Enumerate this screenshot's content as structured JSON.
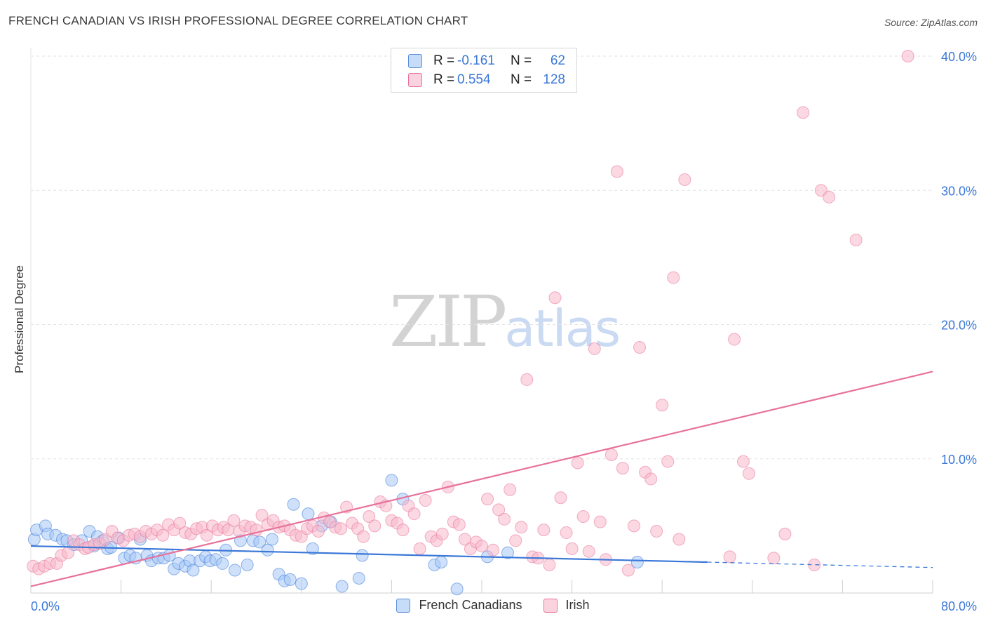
{
  "title": "FRENCH CANADIAN VS IRISH PROFESSIONAL DEGREE CORRELATION CHART",
  "source": "Source: ZipAtlas.com",
  "watermark": {
    "zip": "ZIP",
    "atlas": "atlas"
  },
  "legend_top": {
    "rows": [
      {
        "r_label": "R =",
        "r_value": "-0.161",
        "n_label": "N =",
        "n_value": "62",
        "color": "#a8c8f5"
      },
      {
        "r_label": "R =",
        "r_value": "0.554",
        "n_label": "N =",
        "n_value": "128",
        "color": "#f7b8cb"
      }
    ]
  },
  "legend_bottom": [
    {
      "label": "French Canadians",
      "color": "#a8c8f5"
    },
    {
      "label": "Irish",
      "color": "#f7b8cb"
    }
  ],
  "chart_data": {
    "type": "scatter",
    "title": "FRENCH CANADIAN VS IRISH PROFESSIONAL DEGREE CORRELATION CHART",
    "xlabel": "",
    "ylabel": "Professional Degree",
    "xlim": [
      0,
      80
    ],
    "ylim": [
      0,
      40
    ],
    "x_tick_labels": [
      {
        "value": 0,
        "label": "0.0%"
      },
      {
        "value": 80,
        "label": "80.0%"
      }
    ],
    "y_tick_labels": [
      {
        "value": 10,
        "label": "10.0%"
      },
      {
        "value": 20,
        "label": "20.0%"
      },
      {
        "value": 30,
        "label": "30.0%"
      },
      {
        "value": 40,
        "label": "40.0%"
      }
    ],
    "grid": true,
    "series": [
      {
        "name": "French Canadians",
        "color": "#3b78d8",
        "fill": "#a8c8f5",
        "r": -0.161,
        "n": 62,
        "trend": {
          "x0": 0,
          "y0": 3.5,
          "x1": 60,
          "y1": 2.3,
          "dash_to": 80,
          "dash_y": 1.9
        },
        "points": [
          [
            0.3,
            4.0
          ],
          [
            0.5,
            4.7
          ],
          [
            1.3,
            5.0
          ],
          [
            1.5,
            4.4
          ],
          [
            2.2,
            4.3
          ],
          [
            2.8,
            4.0
          ],
          [
            3.2,
            3.9
          ],
          [
            3.8,
            3.6
          ],
          [
            4.5,
            3.9
          ],
          [
            5.2,
            4.6
          ],
          [
            5.6,
            3.5
          ],
          [
            5.9,
            4.2
          ],
          [
            6.4,
            3.9
          ],
          [
            6.8,
            3.3
          ],
          [
            7.1,
            3.4
          ],
          [
            7.8,
            4.1
          ],
          [
            8.3,
            2.6
          ],
          [
            8.8,
            2.8
          ],
          [
            9.3,
            2.6
          ],
          [
            9.7,
            4.0
          ],
          [
            10.3,
            2.8
          ],
          [
            10.7,
            2.4
          ],
          [
            11.3,
            2.6
          ],
          [
            11.8,
            2.6
          ],
          [
            12.3,
            2.8
          ],
          [
            12.7,
            1.8
          ],
          [
            13.1,
            2.2
          ],
          [
            13.7,
            2.0
          ],
          [
            14.1,
            2.4
          ],
          [
            14.4,
            1.7
          ],
          [
            15.0,
            2.4
          ],
          [
            15.5,
            2.7
          ],
          [
            15.9,
            2.4
          ],
          [
            16.4,
            2.5
          ],
          [
            17.0,
            2.2
          ],
          [
            17.3,
            3.2
          ],
          [
            18.1,
            1.7
          ],
          [
            18.6,
            3.9
          ],
          [
            19.2,
            2.1
          ],
          [
            19.7,
            3.9
          ],
          [
            20.3,
            3.8
          ],
          [
            21.0,
            3.2
          ],
          [
            21.4,
            4.0
          ],
          [
            22.0,
            1.4
          ],
          [
            22.5,
            0.9
          ],
          [
            23.0,
            1.0
          ],
          [
            23.3,
            6.6
          ],
          [
            24.0,
            0.7
          ],
          [
            24.6,
            5.9
          ],
          [
            25.0,
            3.3
          ],
          [
            25.8,
            5.0
          ],
          [
            26.6,
            5.3
          ],
          [
            27.6,
            0.5
          ],
          [
            29.1,
            1.1
          ],
          [
            29.4,
            2.8
          ],
          [
            32.0,
            8.4
          ],
          [
            33.0,
            7.0
          ],
          [
            35.8,
            2.1
          ],
          [
            36.4,
            2.3
          ],
          [
            37.8,
            0.3
          ],
          [
            40.5,
            2.7
          ],
          [
            42.3,
            3.0
          ],
          [
            53.8,
            2.3
          ]
        ]
      },
      {
        "name": "Irish",
        "color": "#e8729a",
        "fill": "#f7b8cb",
        "r": 0.554,
        "n": 128,
        "trend": {
          "x0": 0,
          "y0": 0.5,
          "x1": 80,
          "y1": 16.5
        },
        "points": [
          [
            0.2,
            2.0
          ],
          [
            0.7,
            1.8
          ],
          [
            1.2,
            2.0
          ],
          [
            1.7,
            2.2
          ],
          [
            2.3,
            2.2
          ],
          [
            2.7,
            2.8
          ],
          [
            3.3,
            3.0
          ],
          [
            3.8,
            3.9
          ],
          [
            4.3,
            3.6
          ],
          [
            4.8,
            3.3
          ],
          [
            5.1,
            3.4
          ],
          [
            5.6,
            3.6
          ],
          [
            6.1,
            3.7
          ],
          [
            6.6,
            4.0
          ],
          [
            7.2,
            4.6
          ],
          [
            7.7,
            4.1
          ],
          [
            8.2,
            3.9
          ],
          [
            8.7,
            4.3
          ],
          [
            9.2,
            4.4
          ],
          [
            9.7,
            4.2
          ],
          [
            10.2,
            4.6
          ],
          [
            10.7,
            4.4
          ],
          [
            11.2,
            4.7
          ],
          [
            11.7,
            4.3
          ],
          [
            12.2,
            5.1
          ],
          [
            12.7,
            4.7
          ],
          [
            13.2,
            5.2
          ],
          [
            13.7,
            4.5
          ],
          [
            14.2,
            4.4
          ],
          [
            14.7,
            4.8
          ],
          [
            15.2,
            4.9
          ],
          [
            15.6,
            4.3
          ],
          [
            16.1,
            5.0
          ],
          [
            16.6,
            4.7
          ],
          [
            17.1,
            4.9
          ],
          [
            17.5,
            4.7
          ],
          [
            18.0,
            5.4
          ],
          [
            18.5,
            4.6
          ],
          [
            19.0,
            5.0
          ],
          [
            19.5,
            4.9
          ],
          [
            20.0,
            4.7
          ],
          [
            20.5,
            5.8
          ],
          [
            21.0,
            5.1
          ],
          [
            21.5,
            5.4
          ],
          [
            22.0,
            4.9
          ],
          [
            22.5,
            5.0
          ],
          [
            23.0,
            4.7
          ],
          [
            23.5,
            4.3
          ],
          [
            24.0,
            4.2
          ],
          [
            24.5,
            4.8
          ],
          [
            25.0,
            5.0
          ],
          [
            25.5,
            4.6
          ],
          [
            26.0,
            5.6
          ],
          [
            26.5,
            5.3
          ],
          [
            27.0,
            4.9
          ],
          [
            27.5,
            4.8
          ],
          [
            28.0,
            6.4
          ],
          [
            28.5,
            5.2
          ],
          [
            29.0,
            4.8
          ],
          [
            29.5,
            4.2
          ],
          [
            30.0,
            5.7
          ],
          [
            30.5,
            5.0
          ],
          [
            31.0,
            6.8
          ],
          [
            31.5,
            6.5
          ],
          [
            32.0,
            5.4
          ],
          [
            32.5,
            5.2
          ],
          [
            33.0,
            4.7
          ],
          [
            33.5,
            6.5
          ],
          [
            34.0,
            5.9
          ],
          [
            34.5,
            3.3
          ],
          [
            35.0,
            6.9
          ],
          [
            35.5,
            4.2
          ],
          [
            36.0,
            3.9
          ],
          [
            36.5,
            4.4
          ],
          [
            37.0,
            7.9
          ],
          [
            37.5,
            5.3
          ],
          [
            38.0,
            5.1
          ],
          [
            38.5,
            4.0
          ],
          [
            39.0,
            3.3
          ],
          [
            39.5,
            3.8
          ],
          [
            40.0,
            3.5
          ],
          [
            40.5,
            7.0
          ],
          [
            41.0,
            3.2
          ],
          [
            41.5,
            6.2
          ],
          [
            42.0,
            5.5
          ],
          [
            42.5,
            7.7
          ],
          [
            43.0,
            3.9
          ],
          [
            43.5,
            4.9
          ],
          [
            44.0,
            15.9
          ],
          [
            44.5,
            2.7
          ],
          [
            45.0,
            2.6
          ],
          [
            45.5,
            4.7
          ],
          [
            46.0,
            2.1
          ],
          [
            46.5,
            22.0
          ],
          [
            47.0,
            7.1
          ],
          [
            47.5,
            4.5
          ],
          [
            48.0,
            3.3
          ],
          [
            48.5,
            9.7
          ],
          [
            49.0,
            5.7
          ],
          [
            49.5,
            3.1
          ],
          [
            50.0,
            18.2
          ],
          [
            50.5,
            5.3
          ],
          [
            51.0,
            2.5
          ],
          [
            51.5,
            10.3
          ],
          [
            52.0,
            31.4
          ],
          [
            52.5,
            9.3
          ],
          [
            53.0,
            1.7
          ],
          [
            53.5,
            5.0
          ],
          [
            54.0,
            18.3
          ],
          [
            54.5,
            9.0
          ],
          [
            55.0,
            8.5
          ],
          [
            55.5,
            4.6
          ],
          [
            56.0,
            14.0
          ],
          [
            56.5,
            9.8
          ],
          [
            57.0,
            23.5
          ],
          [
            57.5,
            4.0
          ],
          [
            58.0,
            30.8
          ],
          [
            62.0,
            2.7
          ],
          [
            62.4,
            18.9
          ],
          [
            63.2,
            9.8
          ],
          [
            63.7,
            8.9
          ],
          [
            65.9,
            2.6
          ],
          [
            66.9,
            4.4
          ],
          [
            69.5,
            2.1
          ],
          [
            68.5,
            35.8
          ],
          [
            70.1,
            30.0
          ],
          [
            70.8,
            29.5
          ],
          [
            73.2,
            26.3
          ],
          [
            77.8,
            40.0
          ]
        ]
      }
    ]
  }
}
